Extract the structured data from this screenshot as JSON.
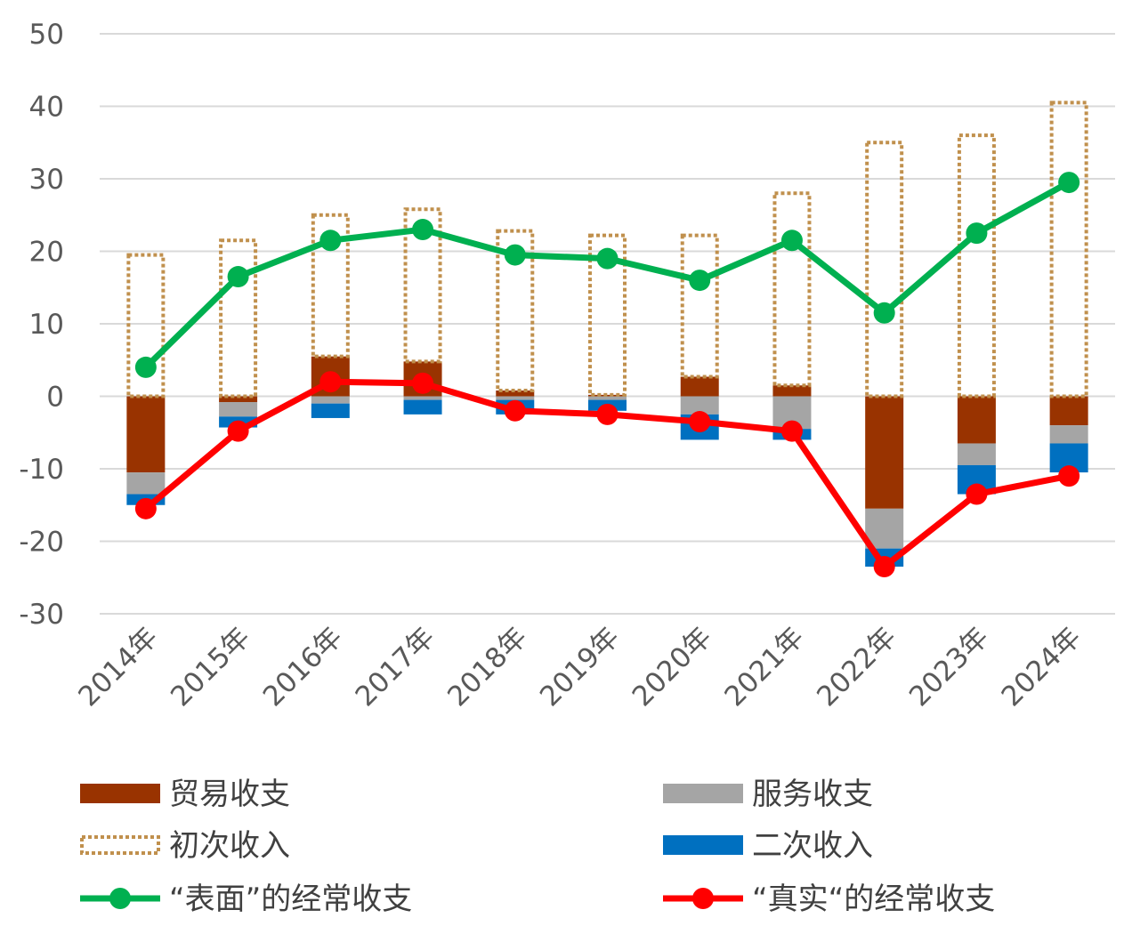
{
  "chart_data": {
    "type": "bar",
    "stacked": true,
    "categories": [
      "2014年",
      "2015年",
      "2016年",
      "2017年",
      "2018年",
      "2019年",
      "2020年",
      "2021年",
      "2022年",
      "2023年",
      "2024年"
    ],
    "ylim": [
      -30,
      50
    ],
    "yticks": [
      50,
      40,
      30,
      20,
      10,
      0,
      -10,
      -20,
      -30
    ],
    "grid": true,
    "legend_position": "bottom",
    "series": [
      {
        "name": "贸易收支",
        "kind": "bar",
        "color": "#993300",
        "values": [
          -10.5,
          -0.8,
          5.5,
          4.8,
          0.8,
          0.2,
          2.7,
          1.5,
          -15.5,
          -6.5,
          -4
        ]
      },
      {
        "name": "服务收支",
        "kind": "bar",
        "color": "#a5a5a5",
        "values": [
          -3,
          -2,
          -1,
          -0.5,
          -0.5,
          -0.5,
          -2.5,
          -4.5,
          -5.5,
          -3,
          -2.5
        ]
      },
      {
        "name": "初次收入",
        "kind": "bar-outline",
        "color": "#c0904d",
        "values": [
          19.5,
          21.5,
          19.5,
          21,
          22,
          22,
          19.5,
          26.5,
          35,
          36,
          40.5
        ]
      },
      {
        "name": "二次收入",
        "kind": "bar",
        "color": "#0070c0",
        "values": [
          -1.5,
          -1.5,
          -2,
          -2,
          -2,
          -1.5,
          -3.5,
          -1.5,
          -2.5,
          -4,
          -4
        ]
      },
      {
        "name": "“表面”的经常收支",
        "kind": "line",
        "color": "#00b050",
        "values": [
          4,
          16.5,
          21.5,
          23,
          19.5,
          19,
          16,
          21.5,
          11.5,
          22.5,
          29.5
        ]
      },
      {
        "name": "“真实“的经常收支",
        "kind": "line",
        "color": "#ff0000",
        "values": [
          -15.5,
          -4.8,
          2,
          1.8,
          -2,
          -2.5,
          -3.5,
          -4.8,
          -23.5,
          -13.5,
          -11
        ]
      }
    ]
  }
}
